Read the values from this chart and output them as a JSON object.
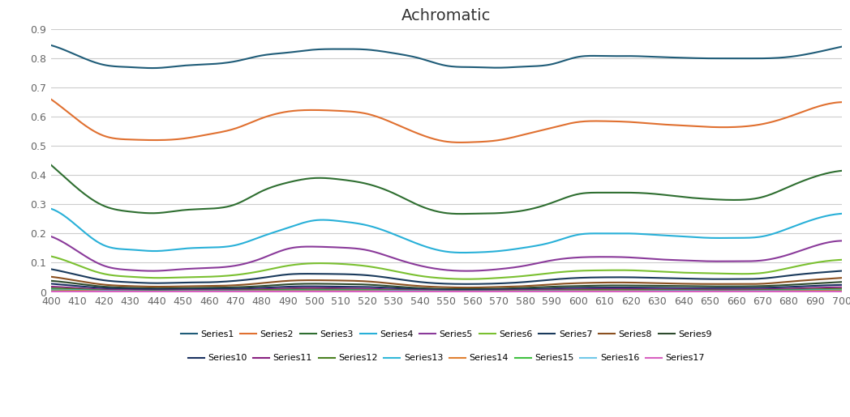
{
  "title": "Achromatic",
  "x": [
    400,
    410,
    420,
    430,
    440,
    450,
    460,
    470,
    480,
    490,
    500,
    510,
    520,
    530,
    540,
    550,
    560,
    570,
    580,
    590,
    600,
    610,
    620,
    630,
    640,
    650,
    660,
    670,
    680,
    690,
    700
  ],
  "series": {
    "Series1": [
      0.845,
      0.81,
      0.778,
      0.77,
      0.767,
      0.775,
      0.78,
      0.79,
      0.81,
      0.82,
      0.83,
      0.832,
      0.83,
      0.818,
      0.8,
      0.775,
      0.77,
      0.768,
      0.772,
      0.78,
      0.805,
      0.808,
      0.808,
      0.805,
      0.802,
      0.8,
      0.8,
      0.8,
      0.805,
      0.82,
      0.84
    ],
    "Series2": [
      0.66,
      0.59,
      0.535,
      0.522,
      0.52,
      0.525,
      0.54,
      0.56,
      0.595,
      0.618,
      0.623,
      0.62,
      0.61,
      0.578,
      0.54,
      0.515,
      0.513,
      0.52,
      0.54,
      0.562,
      0.582,
      0.585,
      0.582,
      0.575,
      0.57,
      0.565,
      0.565,
      0.575,
      0.6,
      0.632,
      0.65
    ],
    "Series3": [
      0.435,
      0.355,
      0.295,
      0.275,
      0.27,
      0.28,
      0.285,
      0.3,
      0.345,
      0.375,
      0.39,
      0.385,
      0.37,
      0.338,
      0.295,
      0.27,
      0.268,
      0.27,
      0.28,
      0.305,
      0.335,
      0.34,
      0.34,
      0.335,
      0.325,
      0.318,
      0.315,
      0.325,
      0.36,
      0.395,
      0.415
    ],
    "Series4": [
      0.285,
      0.225,
      0.16,
      0.145,
      0.14,
      0.148,
      0.152,
      0.16,
      0.19,
      0.22,
      0.245,
      0.242,
      0.228,
      0.198,
      0.162,
      0.138,
      0.135,
      0.14,
      0.152,
      0.17,
      0.196,
      0.2,
      0.2,
      0.195,
      0.19,
      0.185,
      0.185,
      0.19,
      0.218,
      0.25,
      0.268
    ],
    "Series5": [
      0.19,
      0.14,
      0.09,
      0.075,
      0.072,
      0.078,
      0.082,
      0.09,
      0.115,
      0.148,
      0.155,
      0.152,
      0.143,
      0.116,
      0.09,
      0.075,
      0.072,
      0.078,
      0.09,
      0.108,
      0.118,
      0.12,
      0.118,
      0.112,
      0.108,
      0.105,
      0.105,
      0.108,
      0.128,
      0.158,
      0.175
    ],
    "Series6": [
      0.122,
      0.092,
      0.062,
      0.052,
      0.048,
      0.05,
      0.052,
      0.058,
      0.072,
      0.09,
      0.098,
      0.096,
      0.088,
      0.072,
      0.055,
      0.046,
      0.044,
      0.048,
      0.055,
      0.065,
      0.072,
      0.074,
      0.074,
      0.07,
      0.066,
      0.064,
      0.062,
      0.065,
      0.082,
      0.1,
      0.11
    ],
    "Series7": [
      0.078,
      0.058,
      0.04,
      0.033,
      0.03,
      0.032,
      0.033,
      0.038,
      0.048,
      0.06,
      0.062,
      0.061,
      0.057,
      0.046,
      0.034,
      0.028,
      0.027,
      0.029,
      0.034,
      0.042,
      0.048,
      0.05,
      0.05,
      0.048,
      0.046,
      0.044,
      0.044,
      0.046,
      0.056,
      0.065,
      0.072
    ],
    "Series8": [
      0.052,
      0.038,
      0.025,
      0.02,
      0.018,
      0.019,
      0.02,
      0.023,
      0.03,
      0.038,
      0.04,
      0.039,
      0.036,
      0.028,
      0.02,
      0.016,
      0.015,
      0.017,
      0.02,
      0.026,
      0.03,
      0.032,
      0.032,
      0.03,
      0.028,
      0.027,
      0.027,
      0.028,
      0.035,
      0.042,
      0.048
    ],
    "Series9": [
      0.038,
      0.028,
      0.018,
      0.014,
      0.012,
      0.013,
      0.014,
      0.016,
      0.02,
      0.026,
      0.028,
      0.027,
      0.025,
      0.019,
      0.013,
      0.01,
      0.01,
      0.011,
      0.014,
      0.018,
      0.02,
      0.022,
      0.022,
      0.021,
      0.02,
      0.019,
      0.019,
      0.02,
      0.024,
      0.029,
      0.034
    ],
    "Series10": [
      0.028,
      0.02,
      0.013,
      0.01,
      0.009,
      0.009,
      0.01,
      0.011,
      0.014,
      0.018,
      0.019,
      0.018,
      0.017,
      0.013,
      0.009,
      0.007,
      0.007,
      0.008,
      0.009,
      0.012,
      0.014,
      0.015,
      0.015,
      0.014,
      0.013,
      0.013,
      0.013,
      0.014,
      0.017,
      0.021,
      0.024
    ],
    "Series11": [
      0.018,
      0.013,
      0.008,
      0.006,
      0.005,
      0.006,
      0.006,
      0.007,
      0.009,
      0.012,
      0.013,
      0.012,
      0.011,
      0.008,
      0.006,
      0.004,
      0.004,
      0.005,
      0.006,
      0.008,
      0.009,
      0.01,
      0.01,
      0.009,
      0.009,
      0.008,
      0.008,
      0.009,
      0.011,
      0.014,
      0.016
    ],
    "Series12": [
      0.012,
      0.009,
      0.005,
      0.004,
      0.004,
      0.004,
      0.004,
      0.005,
      0.006,
      0.008,
      0.008,
      0.008,
      0.007,
      0.006,
      0.004,
      0.003,
      0.003,
      0.003,
      0.004,
      0.005,
      0.006,
      0.006,
      0.006,
      0.006,
      0.006,
      0.005,
      0.005,
      0.006,
      0.007,
      0.009,
      0.01
    ],
    "Series13": [
      0.008,
      0.006,
      0.004,
      0.003,
      0.002,
      0.003,
      0.003,
      0.003,
      0.004,
      0.005,
      0.005,
      0.005,
      0.005,
      0.004,
      0.003,
      0.002,
      0.002,
      0.002,
      0.003,
      0.003,
      0.004,
      0.004,
      0.004,
      0.004,
      0.004,
      0.003,
      0.003,
      0.004,
      0.005,
      0.006,
      0.007
    ],
    "Series14": [
      0.005,
      0.004,
      0.002,
      0.002,
      0.001,
      0.002,
      0.002,
      0.002,
      0.003,
      0.003,
      0.003,
      0.003,
      0.003,
      0.002,
      0.002,
      0.001,
      0.001,
      0.002,
      0.002,
      0.002,
      0.003,
      0.003,
      0.003,
      0.002,
      0.002,
      0.002,
      0.002,
      0.002,
      0.003,
      0.004,
      0.005
    ],
    "Series15": [
      0.003,
      0.002,
      0.001,
      0.001,
      0.001,
      0.001,
      0.001,
      0.001,
      0.002,
      0.002,
      0.002,
      0.002,
      0.002,
      0.001,
      0.001,
      0.001,
      0.001,
      0.001,
      0.001,
      0.001,
      0.002,
      0.002,
      0.002,
      0.002,
      0.001,
      0.001,
      0.001,
      0.001,
      0.002,
      0.002,
      0.003
    ],
    "Series16": [
      0.002,
      0.001,
      0.001,
      0.001,
      0.001,
      0.001,
      0.001,
      0.001,
      0.001,
      0.001,
      0.001,
      0.001,
      0.001,
      0.001,
      0.001,
      0.001,
      0.001,
      0.001,
      0.001,
      0.001,
      0.001,
      0.001,
      0.001,
      0.001,
      0.001,
      0.001,
      0.001,
      0.001,
      0.001,
      0.001,
      0.001
    ],
    "Series17": [
      0.001,
      0.001,
      0.001,
      0.001,
      0.001,
      0.001,
      0.001,
      0.001,
      0.001,
      0.001,
      0.001,
      0.001,
      0.001,
      0.001,
      0.001,
      0.001,
      0.001,
      0.001,
      0.001,
      0.001,
      0.001,
      0.001,
      0.001,
      0.001,
      0.001,
      0.001,
      0.001,
      0.001,
      0.001,
      0.001,
      0.001
    ]
  },
  "colors": {
    "Series1": "#1f5c78",
    "Series2": "#e07030",
    "Series3": "#2e6e30",
    "Series4": "#28b0d8",
    "Series5": "#8a3a9a",
    "Series6": "#7ac030",
    "Series7": "#1a3a5c",
    "Series8": "#8b5020",
    "Series9": "#2d4a2d",
    "Series10": "#1a3060",
    "Series11": "#882080",
    "Series12": "#4a8020",
    "Series13": "#30b8d8",
    "Series14": "#e08030",
    "Series15": "#40c040",
    "Series16": "#70c8e8",
    "Series17": "#d860c0"
  },
  "ylim": [
    0,
    0.9
  ],
  "yticks": [
    0,
    0.1,
    0.2,
    0.3,
    0.4,
    0.5,
    0.6,
    0.7,
    0.8,
    0.9
  ],
  "background_color": "#ffffff",
  "grid_color": "#cccccc",
  "title_fontsize": 14,
  "tick_fontsize": 9,
  "legend_fontsize": 8
}
